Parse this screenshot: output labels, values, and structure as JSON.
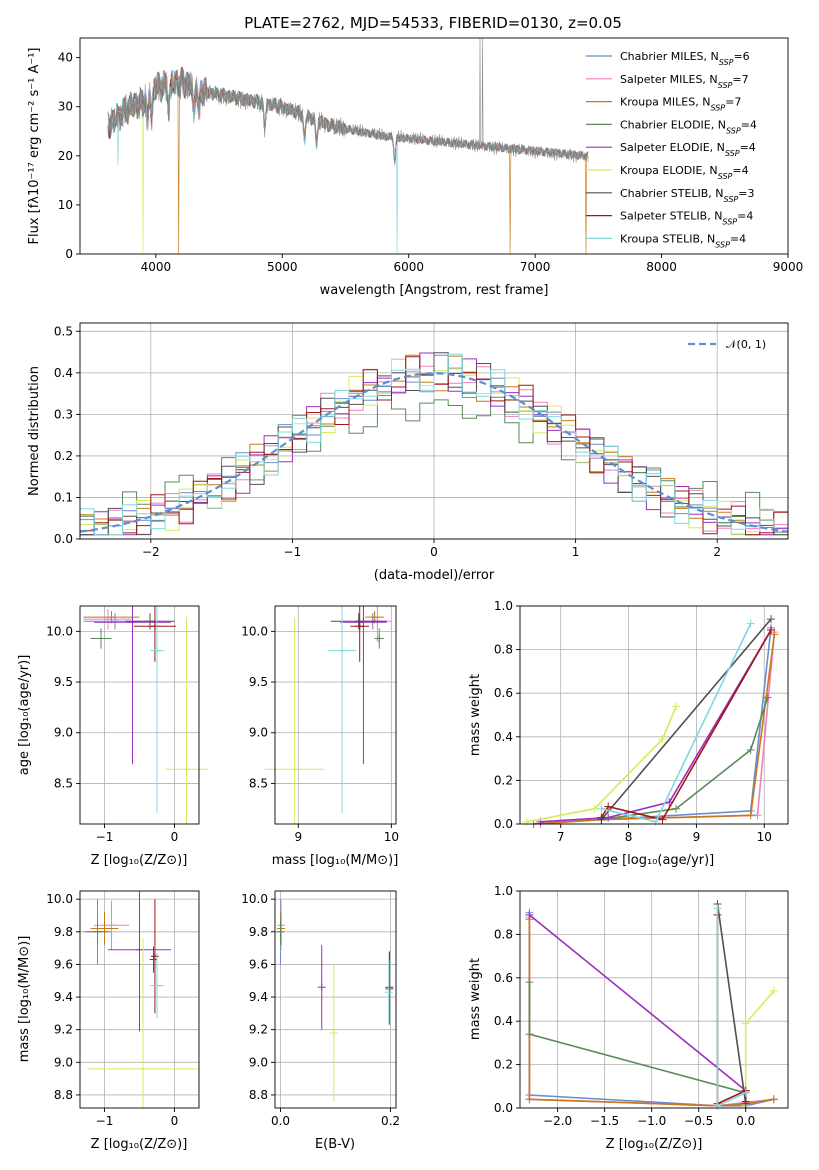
{
  "colors": [
    "#6b8ccd",
    "#f07fc0",
    "#c8781a",
    "#5a8a5a",
    "#9a2ec0",
    "#d4ec5a",
    "#505050",
    "#a01818",
    "#7fd8e0"
  ],
  "chart_data": [
    {
      "id": "spectrum",
      "type": "line",
      "title": "PLATE=2762, MJD=54533, FIBERID=0130, z=0.05",
      "xlabel": "wavelength [Angstrom, rest frame]",
      "ylabel": "Flux [fλ10⁻¹⁷ erg cm⁻² s⁻¹ A⁻¹]",
      "xlim": [
        3400,
        9000
      ],
      "ylim": [
        0,
        44
      ],
      "xticks": [
        "4000",
        "5000",
        "6000",
        "7000",
        "8000",
        "9000"
      ],
      "yticks": [
        "0",
        "10",
        "20",
        "30",
        "40"
      ],
      "legend": [
        "Chabrier MILES, N_SSP=6",
        "Salpeter MILES, N_SSP=7",
        "Kroupa MILES, N_SSP=7",
        "Chabrier ELODIE, N_SSP=4",
        "Salpeter ELODIE, N_SSP=4",
        "Kroupa ELODIE, N_SSP=4",
        "Chabrier STELIB, N_SSP=3",
        "Salpeter STELIB, N_SSP=4",
        "Kroupa STELIB, N_SSP=4"
      ],
      "continuum": {
        "x": [
          3620,
          3700,
          3800,
          3900,
          4000,
          4200,
          4400,
          4600,
          4800,
          5000,
          5200,
          5400,
          5600,
          5800,
          6000,
          6200,
          6400,
          6600,
          6800,
          7000,
          7200,
          7400
        ],
        "y": [
          26,
          28,
          30,
          31,
          34,
          35,
          33,
          32,
          31,
          30,
          28,
          26,
          25,
          24,
          23.5,
          23,
          22.5,
          22,
          21.5,
          21,
          20.5,
          20
        ]
      }
    },
    {
      "id": "residuals",
      "type": "line",
      "xlabel": "(data-model)/error",
      "ylabel": "Normed distribution",
      "xlim": [
        -2.5,
        2.5
      ],
      "ylim": [
        0,
        0.52
      ],
      "xticks": [
        "−2",
        "−1",
        "0",
        "1",
        "2"
      ],
      "yticks": [
        "0.0",
        "0.1",
        "0.2",
        "0.3",
        "0.4",
        "0.5"
      ],
      "legend": [
        "𝒩(0, 1)"
      ],
      "gaussian": {
        "mu": 0,
        "sigma": 1
      }
    },
    {
      "id": "age-vs-Z",
      "type": "scatter",
      "xlabel": "Z [log₁₀(Z/Z⊙)]",
      "ylabel": "age  [log₁₀(age/yr)]",
      "xlim": [
        -1.35,
        0.35
      ],
      "ylim": [
        8.1,
        10.25
      ],
      "xticks": [
        "−1",
        "0"
      ],
      "yticks": [
        "8.5",
        "9.0",
        "9.5",
        "10.0"
      ],
      "points": [
        {
          "x": -0.85,
          "y": 10.1,
          "xe": 0.45,
          "ye": 0.08,
          "c": 0
        },
        {
          "x": -0.95,
          "y": 10.12,
          "xe": 0.35,
          "ye": 0.1,
          "c": 1
        },
        {
          "x": -0.9,
          "y": 10.14,
          "xe": 0.4,
          "ye": 0.06,
          "c": 2
        },
        {
          "x": -1.05,
          "y": 9.93,
          "xe": 0.15,
          "ye": 0.1,
          "c": 3
        },
        {
          "x": -0.6,
          "y": 10.09,
          "xe": 0.55,
          "ye": 1.4,
          "c": 4
        },
        {
          "x": 0.17,
          "y": 8.64,
          "xe": 0.3,
          "ye": 1.5,
          "c": 5
        },
        {
          "x": -0.35,
          "y": 10.1,
          "xe": 0.35,
          "ye": 0.08,
          "c": 6
        },
        {
          "x": -0.28,
          "y": 10.05,
          "xe": 0.3,
          "ye": 0.35,
          "c": 7
        },
        {
          "x": -0.25,
          "y": 9.81,
          "xe": 0.1,
          "ye": 1.6,
          "c": 8
        }
      ]
    },
    {
      "id": "age-vs-mass",
      "type": "scatter",
      "xlabel": "mass [log₁₀(M/M⊙)]",
      "xlim": [
        8.75,
        10.05
      ],
      "ylim": [
        8.1,
        10.25
      ],
      "xticks": [
        "9",
        "10"
      ],
      "yticks": [
        "8.5",
        "9.0",
        "9.5",
        "10.0"
      ],
      "points": [
        {
          "x": 9.8,
          "y": 10.1,
          "xe": 0.1,
          "ye": 0.08,
          "c": 0
        },
        {
          "x": 9.85,
          "y": 10.1,
          "xe": 0.15,
          "ye": 0.2,
          "c": 1
        },
        {
          "x": 9.82,
          "y": 10.14,
          "xe": 0.1,
          "ye": 0.06,
          "c": 2
        },
        {
          "x": 9.87,
          "y": 9.93,
          "xe": 0.05,
          "ye": 0.1,
          "c": 3
        },
        {
          "x": 9.7,
          "y": 10.09,
          "xe": 0.25,
          "ye": 1.4,
          "c": 4
        },
        {
          "x": 8.96,
          "y": 8.64,
          "xe": 0.32,
          "ye": 1.5,
          "c": 5
        },
        {
          "x": 9.65,
          "y": 10.1,
          "xe": 0.3,
          "ye": 0.08,
          "c": 6
        },
        {
          "x": 9.66,
          "y": 10.05,
          "xe": 0.1,
          "ye": 0.35,
          "c": 7
        },
        {
          "x": 9.47,
          "y": 9.81,
          "xe": 0.15,
          "ye": 1.6,
          "c": 8
        }
      ]
    },
    {
      "id": "weight-vs-age",
      "type": "line",
      "xlabel": "age  [log₁₀(age/yr)]",
      "ylabel": "mass weight",
      "xlim": [
        6.4,
        10.35
      ],
      "ylim": [
        0,
        1.0
      ],
      "xticks": [
        "7",
        "8",
        "9",
        "10"
      ],
      "yticks": [
        "0.0",
        "0.2",
        "0.4",
        "0.6",
        "0.8",
        "1.0"
      ],
      "series": [
        {
          "c": 0,
          "x": [
            6.6,
            7.6,
            9.8,
            10.1
          ],
          "y": [
            0.0,
            0.02,
            0.06,
            0.9
          ]
        },
        {
          "c": 1,
          "x": [
            6.7,
            7.6,
            9.9,
            10.15
          ],
          "y": [
            0.0,
            0.02,
            0.04,
            0.88
          ]
        },
        {
          "c": 2,
          "x": [
            6.6,
            7.6,
            9.8,
            10.15
          ],
          "y": [
            0.0,
            0.02,
            0.04,
            0.87
          ]
        },
        {
          "c": 3,
          "x": [
            7.6,
            8.7,
            9.8,
            10.05
          ],
          "y": [
            0.02,
            0.07,
            0.34,
            0.58
          ]
        },
        {
          "c": 4,
          "x": [
            6.7,
            7.7,
            8.6,
            10.1
          ],
          "y": [
            0.01,
            0.03,
            0.1,
            0.89
          ]
        },
        {
          "c": 5,
          "x": [
            6.5,
            7.5,
            8.5,
            8.7
          ],
          "y": [
            0.01,
            0.07,
            0.39,
            0.54
          ]
        },
        {
          "c": 6,
          "x": [
            7.6,
            10.1
          ],
          "y": [
            0.02,
            0.94
          ]
        },
        {
          "c": 7,
          "x": [
            7.6,
            7.7,
            8.5,
            10.1
          ],
          "y": [
            0.03,
            0.08,
            0.02,
            0.89
          ]
        },
        {
          "c": 8,
          "x": [
            7.6,
            8.4,
            9.8
          ],
          "y": [
            0.07,
            0.01,
            0.92
          ]
        }
      ]
    },
    {
      "id": "mass-vs-Z",
      "type": "scatter",
      "xlabel": "Z [log₁₀(Z/Z⊙)]",
      "ylabel": "mass [log₁₀(M/M⊙)]",
      "xlim": [
        -1.35,
        0.35
      ],
      "ylim": [
        8.72,
        10.05
      ],
      "xticks": [
        "−1",
        "0"
      ],
      "yticks": [
        "8.8",
        "9.0",
        "9.2",
        "9.4",
        "9.6",
        "9.8",
        "10.0"
      ],
      "points": [
        {
          "x": -1.1,
          "y": 9.8,
          "xe": 0.2,
          "ye": 0.2,
          "c": 0
        },
        {
          "x": -0.9,
          "y": 9.84,
          "xe": 0.25,
          "ye": 0.15,
          "c": 1
        },
        {
          "x": -1.0,
          "y": 9.82,
          "xe": 0.2,
          "ye": 0.1,
          "c": 2
        },
        {
          "x": -1.1,
          "y": 9.8,
          "xe": 0.15,
          "ye": 0.08,
          "c": 3
        },
        {
          "x": -0.5,
          "y": 9.69,
          "xe": 0.45,
          "ye": 0.5,
          "c": 4
        },
        {
          "x": -0.45,
          "y": 8.96,
          "xe": 0.8,
          "ye": 0.8,
          "c": 5
        },
        {
          "x": -0.3,
          "y": 9.63,
          "xe": 0.05,
          "ye": 0.08,
          "c": 6
        },
        {
          "x": -0.28,
          "y": 9.65,
          "xe": 0.03,
          "ye": 0.35,
          "c": 7
        },
        {
          "x": -0.25,
          "y": 9.47,
          "xe": 0.1,
          "ye": 0.2,
          "c": 8
        }
      ]
    },
    {
      "id": "mass-vs-ebv",
      "type": "scatter",
      "xlabel": "E(B-V)",
      "xlim": [
        -0.01,
        0.21
      ],
      "ylim": [
        8.72,
        10.05
      ],
      "xticks": [
        "0.0",
        "0.2"
      ],
      "yticks": [
        "8.8",
        "9.0",
        "9.2",
        "9.4",
        "9.6",
        "9.8",
        "10.0"
      ],
      "points": [
        {
          "x": 0.0,
          "y": 9.8,
          "ye": 0.2,
          "c": 0
        },
        {
          "x": 0.001,
          "y": 9.84,
          "ye": 0.15,
          "c": 1
        },
        {
          "x": 0.001,
          "y": 9.82,
          "ye": 0.1,
          "c": 2
        },
        {
          "x": 0.0,
          "y": 9.8,
          "ye": 0.08,
          "c": 3
        },
        {
          "x": 0.075,
          "y": 9.46,
          "ye": 0.26,
          "c": 4
        },
        {
          "x": 0.097,
          "y": 9.18,
          "ye": 0.42,
          "c": 5
        },
        {
          "x": 0.198,
          "y": 9.45,
          "ye": 0.22,
          "c": 6
        },
        {
          "x": 0.198,
          "y": 9.46,
          "ye": 0.22,
          "c": 7
        },
        {
          "x": 0.197,
          "y": 9.43,
          "ye": 0.2,
          "c": 8
        }
      ]
    },
    {
      "id": "weight-vs-Z",
      "type": "line",
      "xlabel": "Z [log₁₀(Z/Z⊙)]",
      "ylabel": "mass weight",
      "xlim": [
        -2.4,
        0.45
      ],
      "ylim": [
        0,
        1.0
      ],
      "xticks": [
        "−2.0",
        "−1.5",
        "−1.0",
        "−0.5",
        "0.0"
      ],
      "yticks": [
        "0.0",
        "0.2",
        "0.4",
        "0.6",
        "0.8",
        "1.0"
      ],
      "series": [
        {
          "c": 0,
          "x": [
            -2.3,
            -2.3,
            -0.3,
            0.0,
            0.3
          ],
          "y": [
            0.9,
            0.06,
            0.01,
            0.01,
            0.04
          ]
        },
        {
          "c": 1,
          "x": [
            -2.3,
            -2.3,
            -0.3,
            0.3
          ],
          "y": [
            0.88,
            0.04,
            0.01,
            0.04
          ]
        },
        {
          "c": 2,
          "x": [
            -2.3,
            -2.3,
            -0.3,
            0.0,
            0.3
          ],
          "y": [
            0.87,
            0.04,
            0.01,
            0.02,
            0.04
          ]
        },
        {
          "c": 3,
          "x": [
            -2.3,
            -2.3,
            0.0,
            0.0
          ],
          "y": [
            0.58,
            0.34,
            0.07,
            0.02
          ]
        },
        {
          "c": 4,
          "x": [
            -2.3,
            0.0
          ],
          "y": [
            0.89,
            0.08
          ]
        },
        {
          "c": 5,
          "x": [
            0.0,
            0.0,
            0.3
          ],
          "y": [
            0.01,
            0.39,
            0.54
          ]
        },
        {
          "c": 6,
          "x": [
            -0.3,
            0.0
          ],
          "y": [
            0.94,
            0.02
          ]
        },
        {
          "c": 7,
          "x": [
            -0.3,
            -0.3,
            0.0,
            0.0
          ],
          "y": [
            0.89,
            0.02,
            0.08,
            0.03
          ]
        },
        {
          "c": 8,
          "x": [
            -0.3,
            -0.3,
            0.0
          ],
          "y": [
            0.92,
            0.01,
            0.07
          ]
        }
      ]
    }
  ]
}
